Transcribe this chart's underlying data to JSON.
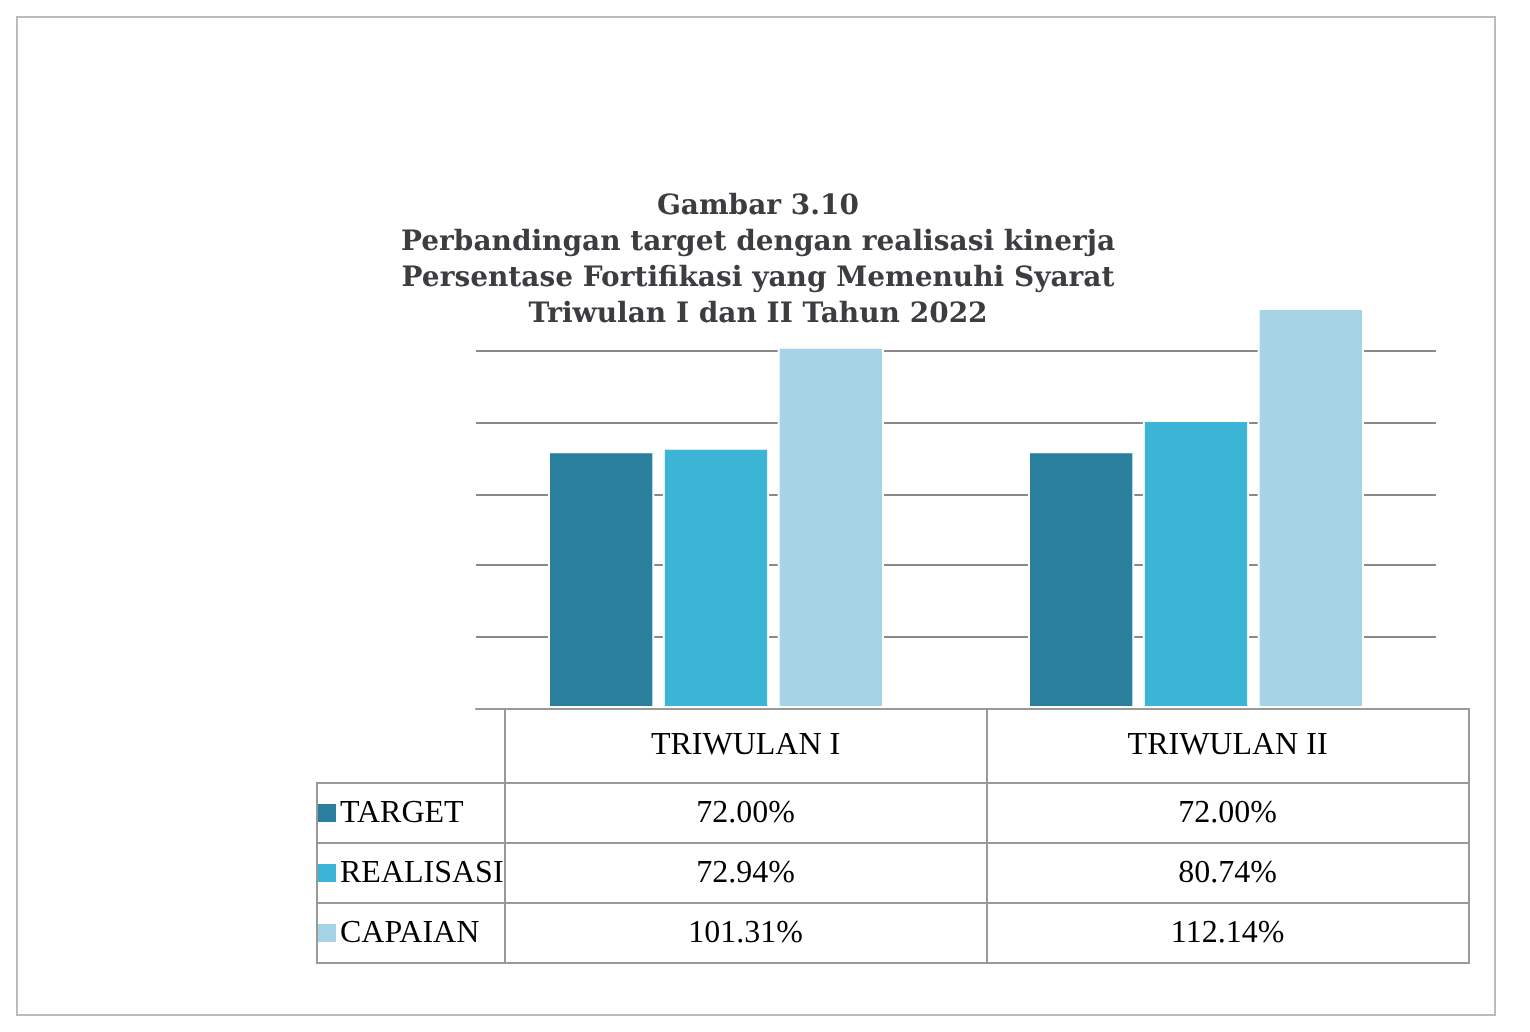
{
  "chart_data": {
    "type": "bar",
    "title": "Gambar 3.10\nPerbandingan target dengan realisasi kinerja\nPersentase Fortifikasi yang Memenuhi Syarat\nTriwulan I dan II Tahun 2022",
    "categories": [
      "TRIWULAN I",
      "TRIWULAN II"
    ],
    "series": [
      {
        "name": "TARGET",
        "color": "#2a7f9e",
        "values": [
          72,
          72
        ],
        "value_labels": [
          "72.00%",
          "72.00%"
        ]
      },
      {
        "name": "REALISASI",
        "color": "#3bb4d6",
        "values": [
          72.94,
          80.74
        ],
        "value_labels": [
          "72.94%",
          "80.74%"
        ]
      },
      {
        "name": "CAPAIAN",
        "color": "#a6d4e6",
        "values": [
          101.31,
          112.14
        ],
        "value_labels": [
          "101.31%",
          "112.14%"
        ]
      }
    ],
    "yticks": [
      {
        "value": 0,
        "label": null
      },
      {
        "value": 20,
        "label": null
      },
      {
        "value": 40,
        "label": null
      },
      {
        "value": 60,
        "label": null
      },
      {
        "value": 80,
        "label": null
      },
      {
        "value": 100,
        "label": null
      }
    ],
    "grid": "y",
    "legend": "bottom",
    "tick_labels": "x"
  }
}
